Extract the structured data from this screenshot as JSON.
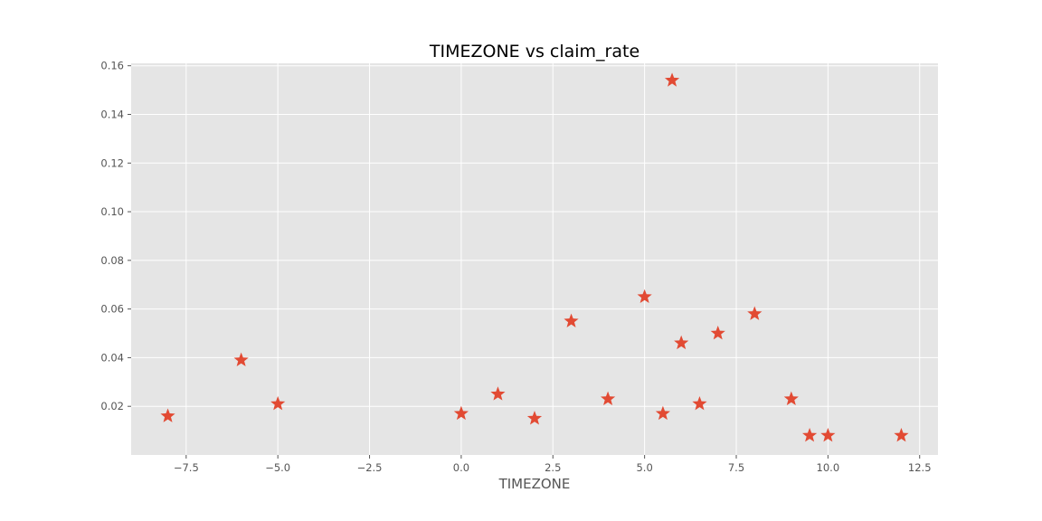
{
  "chart_data": {
    "type": "scatter",
    "title": "TIMEZONE vs claim_rate",
    "xlabel": "TIMEZONE",
    "ylabel": "",
    "xlim": [
      -9.0,
      13.0
    ],
    "ylim": [
      0.0,
      0.161
    ],
    "xticks": [
      -7.5,
      -5.0,
      -2.5,
      0.0,
      2.5,
      5.0,
      7.5,
      10.0,
      12.5
    ],
    "xtick_labels": [
      "−7.5",
      "−5.0",
      "−2.5",
      "0.0",
      "2.5",
      "5.0",
      "7.5",
      "10.0",
      "12.5"
    ],
    "yticks": [
      0.02,
      0.04,
      0.06,
      0.08,
      0.1,
      0.12,
      0.14,
      0.16
    ],
    "ytick_labels": [
      "0.02",
      "0.04",
      "0.06",
      "0.08",
      "0.10",
      "0.12",
      "0.14",
      "0.16"
    ],
    "grid": true,
    "marker": "star",
    "colors": {
      "marker": "#E24A33",
      "plot_background": "#E5E5E5",
      "grid": "#FFFFFF"
    },
    "points": [
      {
        "x": -8.0,
        "y": 0.016
      },
      {
        "x": -6.0,
        "y": 0.039
      },
      {
        "x": -5.0,
        "y": 0.021
      },
      {
        "x": 0.0,
        "y": 0.017
      },
      {
        "x": 1.0,
        "y": 0.025
      },
      {
        "x": 2.0,
        "y": 0.015
      },
      {
        "x": 3.0,
        "y": 0.055
      },
      {
        "x": 4.0,
        "y": 0.023
      },
      {
        "x": 5.0,
        "y": 0.065
      },
      {
        "x": 5.5,
        "y": 0.017
      },
      {
        "x": 5.75,
        "y": 0.154
      },
      {
        "x": 6.0,
        "y": 0.046
      },
      {
        "x": 6.5,
        "y": 0.021
      },
      {
        "x": 7.0,
        "y": 0.05
      },
      {
        "x": 8.0,
        "y": 0.058
      },
      {
        "x": 9.0,
        "y": 0.023
      },
      {
        "x": 9.5,
        "y": 0.008
      },
      {
        "x": 10.0,
        "y": 0.008
      },
      {
        "x": 12.0,
        "y": 0.008
      }
    ]
  }
}
